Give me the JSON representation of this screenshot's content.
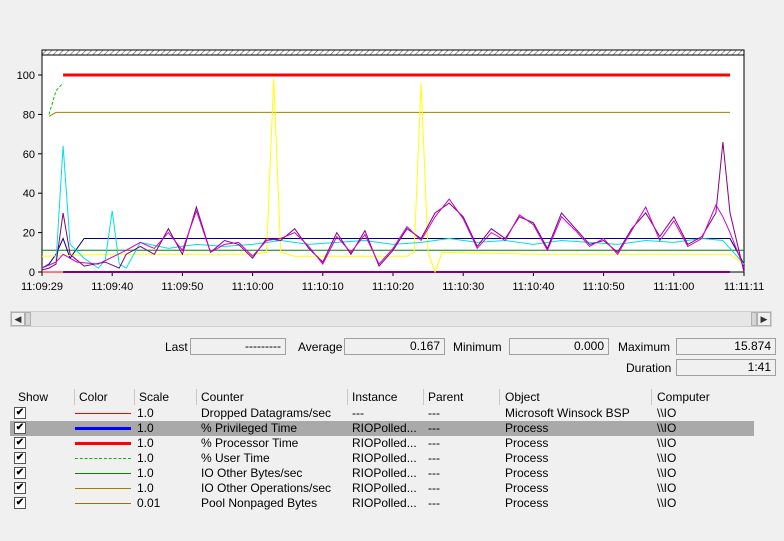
{
  "chart_data": {
    "type": "line",
    "ylim": [
      0,
      110
    ],
    "yticks": [
      "0",
      "20",
      "40",
      "60",
      "80",
      "100"
    ],
    "xticks": [
      "11:09:29",
      "11:09:40",
      "11:09:50",
      "11:10:00",
      "11:10:10",
      "11:10:20",
      "11:10:30",
      "11:10:40",
      "11:10:50",
      "11:11:00",
      "11:11:11"
    ],
    "grid": false,
    "series": [
      {
        "name": "% Processor Time",
        "color": "#ff0000",
        "points": [
          [
            3,
            100
          ],
          [
            98,
            100
          ]
        ]
      },
      {
        "name": "% Privileged Time",
        "color": "#0000ff",
        "points": [
          [
            3,
            0
          ],
          [
            98,
            0
          ]
        ]
      },
      {
        "name": "Dropped Datagrams/sec",
        "color": "#ff0000",
        "points": [
          [
            0,
            0
          ],
          [
            98,
            0
          ]
        ]
      },
      {
        "name": "% User Time",
        "color": "#00c000",
        "points": [
          [
            1,
            80
          ],
          [
            2,
            92
          ],
          [
            3,
            96
          ]
        ]
      },
      {
        "name": "IO Other Operations/sec",
        "color": "#a08000",
        "points": [
          [
            1,
            79
          ],
          [
            2,
            81
          ],
          [
            98,
            81
          ]
        ]
      },
      {
        "name": "Pool Nonpaged Bytes",
        "color": "#0a7d0a",
        "points": [
          [
            0,
            11
          ],
          [
            100,
            11
          ]
        ]
      },
      {
        "name": "navy",
        "color": "#000080",
        "points": [
          [
            0,
            2
          ],
          [
            1,
            4
          ],
          [
            2,
            9
          ],
          [
            3,
            17
          ],
          [
            4,
            7
          ],
          [
            6,
            17
          ],
          [
            30,
            17
          ],
          [
            55,
            17
          ],
          [
            75,
            17
          ],
          [
            98,
            17
          ],
          [
            100,
            4
          ]
        ]
      },
      {
        "name": "yellow",
        "color": "#ffff00",
        "points": [
          [
            0,
            8
          ],
          [
            10,
            9
          ],
          [
            20,
            9
          ],
          [
            30,
            9
          ],
          [
            32,
            10
          ],
          [
            33,
            98
          ],
          [
            34,
            10
          ],
          [
            36,
            8
          ],
          [
            52,
            8
          ],
          [
            53,
            10
          ],
          [
            54,
            96
          ],
          [
            55,
            10
          ],
          [
            56,
            0
          ],
          [
            57,
            10
          ],
          [
            70,
            9
          ],
          [
            85,
            9
          ],
          [
            98,
            9
          ],
          [
            100,
            4
          ]
        ]
      },
      {
        "name": "cyan",
        "color": "#00e0e0",
        "points": [
          [
            0,
            2
          ],
          [
            2,
            5
          ],
          [
            3,
            64
          ],
          [
            4,
            14
          ],
          [
            6,
            7
          ],
          [
            8,
            2
          ],
          [
            9,
            6
          ],
          [
            10,
            31
          ],
          [
            11,
            4
          ],
          [
            12,
            2
          ],
          [
            14,
            15
          ],
          [
            18,
            12
          ],
          [
            22,
            14
          ],
          [
            26,
            13
          ],
          [
            30,
            14
          ],
          [
            34,
            16
          ],
          [
            38,
            14
          ],
          [
            42,
            15
          ],
          [
            46,
            16
          ],
          [
            50,
            14
          ],
          [
            54,
            15
          ],
          [
            58,
            17
          ],
          [
            62,
            15
          ],
          [
            66,
            16
          ],
          [
            70,
            14
          ],
          [
            74,
            16
          ],
          [
            78,
            15
          ],
          [
            82,
            14
          ],
          [
            86,
            16
          ],
          [
            90,
            15
          ],
          [
            94,
            17
          ],
          [
            97,
            16
          ],
          [
            100,
            4
          ]
        ]
      },
      {
        "name": "purple",
        "color": "#800080",
        "points": [
          [
            0,
            1
          ],
          [
            1,
            2
          ],
          [
            2,
            4
          ],
          [
            3,
            30
          ],
          [
            4,
            9
          ],
          [
            6,
            3
          ],
          [
            9,
            5
          ],
          [
            11,
            2
          ],
          [
            12,
            9
          ],
          [
            14,
            13
          ],
          [
            16,
            9
          ],
          [
            18,
            22
          ],
          [
            20,
            9
          ],
          [
            22,
            33
          ],
          [
            24,
            10
          ],
          [
            26,
            16
          ],
          [
            28,
            14
          ],
          [
            30,
            7
          ],
          [
            32,
            17
          ],
          [
            34,
            16
          ],
          [
            36,
            22
          ],
          [
            38,
            12
          ],
          [
            40,
            5
          ],
          [
            42,
            20
          ],
          [
            44,
            9
          ],
          [
            46,
            21
          ],
          [
            48,
            3
          ],
          [
            50,
            11
          ],
          [
            52,
            22
          ],
          [
            54,
            17
          ],
          [
            56,
            30
          ],
          [
            58,
            35
          ],
          [
            60,
            28
          ],
          [
            62,
            13
          ],
          [
            64,
            22
          ],
          [
            66,
            17
          ],
          [
            68,
            28
          ],
          [
            70,
            25
          ],
          [
            72,
            12
          ],
          [
            74,
            30
          ],
          [
            76,
            22
          ],
          [
            78,
            14
          ],
          [
            80,
            16
          ],
          [
            82,
            10
          ],
          [
            84,
            22
          ],
          [
            86,
            30
          ],
          [
            88,
            18
          ],
          [
            90,
            28
          ],
          [
            92,
            14
          ],
          [
            94,
            18
          ],
          [
            96,
            30
          ],
          [
            97,
            66
          ],
          [
            98,
            30
          ],
          [
            100,
            0
          ]
        ]
      },
      {
        "name": "magenta",
        "color": "#d000d0",
        "points": [
          [
            0,
            2
          ],
          [
            2,
            5
          ],
          [
            3,
            9
          ],
          [
            5,
            5
          ],
          [
            8,
            4
          ],
          [
            12,
            11
          ],
          [
            14,
            15
          ],
          [
            16,
            12
          ],
          [
            18,
            20
          ],
          [
            20,
            11
          ],
          [
            22,
            31
          ],
          [
            24,
            10
          ],
          [
            26,
            14
          ],
          [
            28,
            15
          ],
          [
            30,
            8
          ],
          [
            32,
            16
          ],
          [
            34,
            17
          ],
          [
            36,
            20
          ],
          [
            38,
            13
          ],
          [
            40,
            4
          ],
          [
            42,
            18
          ],
          [
            44,
            10
          ],
          [
            46,
            19
          ],
          [
            48,
            4
          ],
          [
            50,
            12
          ],
          [
            52,
            23
          ],
          [
            54,
            16
          ],
          [
            56,
            28
          ],
          [
            58,
            37
          ],
          [
            60,
            27
          ],
          [
            62,
            12
          ],
          [
            64,
            20
          ],
          [
            66,
            16
          ],
          [
            68,
            29
          ],
          [
            70,
            24
          ],
          [
            72,
            11
          ],
          [
            74,
            28
          ],
          [
            76,
            21
          ],
          [
            78,
            13
          ],
          [
            80,
            17
          ],
          [
            82,
            9
          ],
          [
            84,
            21
          ],
          [
            86,
            33
          ],
          [
            88,
            16
          ],
          [
            90,
            26
          ],
          [
            92,
            13
          ],
          [
            94,
            17
          ],
          [
            96,
            34
          ],
          [
            97,
            28
          ],
          [
            98,
            20
          ],
          [
            100,
            2
          ]
        ]
      }
    ]
  },
  "stats": {
    "last_label": "Last",
    "last_value": "---------",
    "average_label": "Average",
    "average_value": "0.167",
    "minimum_label": "Minimum",
    "minimum_value": "0.000",
    "maximum_label": "Maximum",
    "maximum_value": "15.874",
    "duration_label": "Duration",
    "duration_value": "1:41"
  },
  "legend": {
    "headers": {
      "show": "Show",
      "color": "Color",
      "scale": "Scale",
      "counter": "Counter",
      "instance": "Instance",
      "parent": "Parent",
      "object": "Object",
      "computer": "Computer"
    },
    "rows": [
      {
        "checked": "✔",
        "color": "#ff0000",
        "style": "solid-thin",
        "scale": "1.0",
        "counter": "Dropped Datagrams/sec",
        "instance": "---",
        "parent": "---",
        "object": "Microsoft Winsock BSP",
        "computer": "\\\\IO"
      },
      {
        "checked": "✔",
        "color": "#0000ff",
        "style": "solid-thick",
        "scale": "1.0",
        "counter": "% Privileged Time",
        "instance": "RIOPolled...",
        "parent": "---",
        "object": "Process",
        "computer": "\\\\IO",
        "selected": true
      },
      {
        "checked": "✔",
        "color": "#ff0000",
        "style": "solid-thick",
        "scale": "1.0",
        "counter": "% Processor Time",
        "instance": "RIOPolled...",
        "parent": "---",
        "object": "Process",
        "computer": "\\\\IO"
      },
      {
        "checked": "✔",
        "color": "#00c000",
        "style": "dashed",
        "scale": "1.0",
        "counter": "% User Time",
        "instance": "RIOPolled...",
        "parent": "---",
        "object": "Process",
        "computer": "\\\\IO"
      },
      {
        "checked": "✔",
        "color": "#0a7d0a",
        "style": "solid-thin",
        "scale": "1.0",
        "counter": "IO Other Bytes/sec",
        "instance": "RIOPolled...",
        "parent": "---",
        "object": "Process",
        "computer": "\\\\IO"
      },
      {
        "checked": "✔",
        "color": "#a08000",
        "style": "solid-thin",
        "scale": "1.0",
        "counter": "IO Other Operations/sec",
        "instance": "RIOPolled...",
        "parent": "---",
        "object": "Process",
        "computer": "\\\\IO"
      },
      {
        "checked": "✔",
        "color": "#a07000",
        "style": "solid-thin",
        "scale": "0.01",
        "counter": "Pool Nonpaged Bytes",
        "instance": "RIOPolled...",
        "parent": "---",
        "object": "Process",
        "computer": "\\\\IO"
      }
    ]
  }
}
